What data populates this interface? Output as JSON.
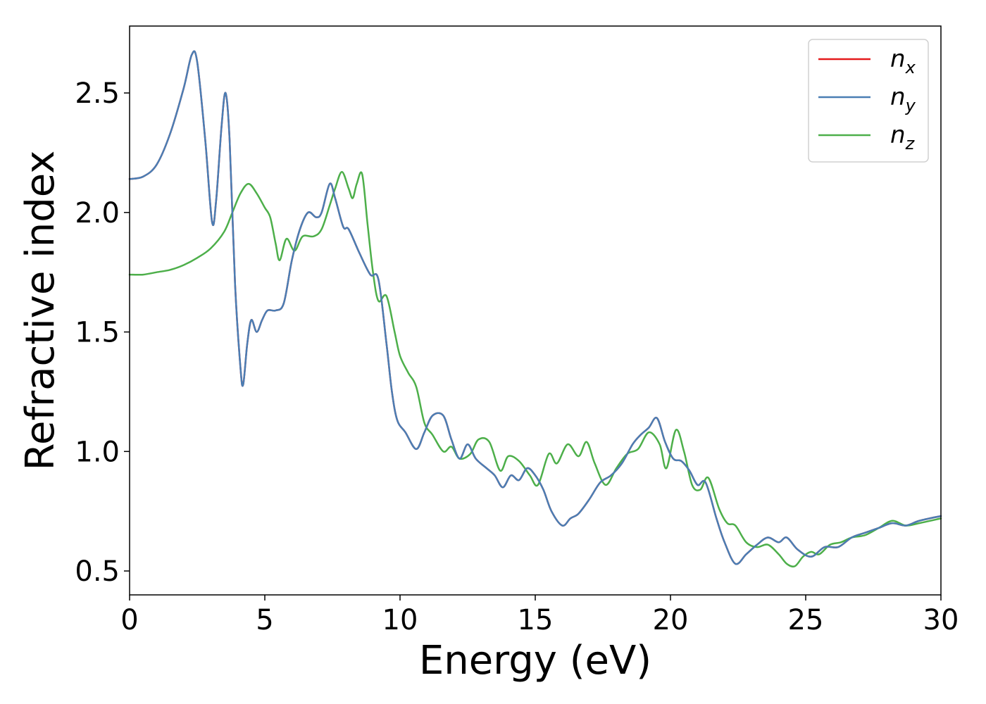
{
  "chart_data": {
    "type": "line",
    "title": "",
    "xlabel": "Energy (eV)",
    "ylabel": "Refractive index",
    "xlim": [
      0,
      30
    ],
    "ylim": [
      0.4,
      2.78
    ],
    "xticks": [
      0,
      5,
      10,
      15,
      20,
      25,
      30
    ],
    "yticks": [
      0.5,
      1.0,
      1.5,
      2.0,
      2.5
    ],
    "xtick_labels": [
      "0",
      "5",
      "10",
      "15",
      "20",
      "25",
      "30"
    ],
    "ytick_labels": [
      "0.5",
      "1.0",
      "1.5",
      "2.0",
      "2.5"
    ],
    "grid": false,
    "legend_position": "top-right",
    "series": [
      {
        "name": "n",
        "subscript": "x",
        "color": "#e41a1c",
        "points": [
          [
            0,
            2.14
          ],
          [
            0.5,
            2.15
          ],
          [
            1,
            2.2
          ],
          [
            1.5,
            2.33
          ],
          [
            2,
            2.52
          ],
          [
            2.3,
            2.66
          ],
          [
            2.5,
            2.63
          ],
          [
            2.8,
            2.3
          ],
          [
            3.05,
            1.96
          ],
          [
            3.2,
            2.05
          ],
          [
            3.4,
            2.36
          ],
          [
            3.55,
            2.5
          ],
          [
            3.7,
            2.3
          ],
          [
            3.9,
            1.7
          ],
          [
            4.1,
            1.35
          ],
          [
            4.2,
            1.28
          ],
          [
            4.35,
            1.45
          ],
          [
            4.5,
            1.55
          ],
          [
            4.7,
            1.5
          ],
          [
            4.9,
            1.55
          ],
          [
            5.1,
            1.59
          ],
          [
            5.4,
            1.59
          ],
          [
            5.7,
            1.62
          ],
          [
            6.0,
            1.8
          ],
          [
            6.3,
            1.93
          ],
          [
            6.6,
            2.0
          ],
          [
            6.9,
            1.98
          ],
          [
            7.1,
            2.0
          ],
          [
            7.4,
            2.12
          ],
          [
            7.6,
            2.06
          ],
          [
            7.9,
            1.94
          ],
          [
            8.1,
            1.93
          ],
          [
            8.5,
            1.83
          ],
          [
            8.9,
            1.74
          ],
          [
            9.2,
            1.72
          ],
          [
            9.5,
            1.45
          ],
          [
            9.7,
            1.25
          ],
          [
            9.9,
            1.13
          ],
          [
            10.2,
            1.08
          ],
          [
            10.6,
            1.01
          ],
          [
            10.9,
            1.08
          ],
          [
            11.2,
            1.15
          ],
          [
            11.6,
            1.15
          ],
          [
            11.9,
            1.05
          ],
          [
            12.2,
            0.97
          ],
          [
            12.5,
            1.03
          ],
          [
            12.8,
            0.97
          ],
          [
            13.2,
            0.93
          ],
          [
            13.5,
            0.9
          ],
          [
            13.8,
            0.85
          ],
          [
            14.1,
            0.9
          ],
          [
            14.4,
            0.88
          ],
          [
            14.7,
            0.93
          ],
          [
            15.0,
            0.9
          ],
          [
            15.3,
            0.84
          ],
          [
            15.6,
            0.75
          ],
          [
            16.0,
            0.69
          ],
          [
            16.3,
            0.72
          ],
          [
            16.6,
            0.74
          ],
          [
            17.0,
            0.8
          ],
          [
            17.4,
            0.87
          ],
          [
            17.8,
            0.9
          ],
          [
            18.2,
            0.95
          ],
          [
            18.6,
            1.03
          ],
          [
            18.9,
            1.07
          ],
          [
            19.2,
            1.1
          ],
          [
            19.5,
            1.14
          ],
          [
            19.8,
            1.04
          ],
          [
            20.1,
            0.97
          ],
          [
            20.4,
            0.96
          ],
          [
            20.7,
            0.92
          ],
          [
            21.0,
            0.86
          ],
          [
            21.3,
            0.87
          ],
          [
            21.7,
            0.72
          ],
          [
            22.0,
            0.62
          ],
          [
            22.4,
            0.53
          ],
          [
            22.8,
            0.57
          ],
          [
            23.2,
            0.61
          ],
          [
            23.6,
            0.64
          ],
          [
            24.0,
            0.62
          ],
          [
            24.3,
            0.64
          ],
          [
            24.7,
            0.59
          ],
          [
            25.2,
            0.56
          ],
          [
            25.7,
            0.6
          ],
          [
            26.2,
            0.6
          ],
          [
            26.7,
            0.64
          ],
          [
            27.2,
            0.66
          ],
          [
            27.7,
            0.68
          ],
          [
            28.2,
            0.7
          ],
          [
            28.7,
            0.69
          ],
          [
            29.2,
            0.71
          ],
          [
            30,
            0.73
          ]
        ]
      },
      {
        "name": "n",
        "subscript": "y",
        "color": "#4a7eb4",
        "points": [
          [
            0,
            2.14
          ],
          [
            0.5,
            2.15
          ],
          [
            1,
            2.2
          ],
          [
            1.5,
            2.33
          ],
          [
            2,
            2.52
          ],
          [
            2.3,
            2.66
          ],
          [
            2.5,
            2.63
          ],
          [
            2.8,
            2.3
          ],
          [
            3.05,
            1.96
          ],
          [
            3.2,
            2.05
          ],
          [
            3.4,
            2.36
          ],
          [
            3.55,
            2.5
          ],
          [
            3.7,
            2.3
          ],
          [
            3.9,
            1.7
          ],
          [
            4.1,
            1.35
          ],
          [
            4.2,
            1.28
          ],
          [
            4.35,
            1.45
          ],
          [
            4.5,
            1.55
          ],
          [
            4.7,
            1.5
          ],
          [
            4.9,
            1.55
          ],
          [
            5.1,
            1.59
          ],
          [
            5.4,
            1.59
          ],
          [
            5.7,
            1.62
          ],
          [
            6.0,
            1.8
          ],
          [
            6.3,
            1.93
          ],
          [
            6.6,
            2.0
          ],
          [
            6.9,
            1.98
          ],
          [
            7.1,
            2.0
          ],
          [
            7.4,
            2.12
          ],
          [
            7.6,
            2.06
          ],
          [
            7.9,
            1.94
          ],
          [
            8.1,
            1.93
          ],
          [
            8.5,
            1.83
          ],
          [
            8.9,
            1.74
          ],
          [
            9.2,
            1.72
          ],
          [
            9.5,
            1.45
          ],
          [
            9.7,
            1.25
          ],
          [
            9.9,
            1.13
          ],
          [
            10.2,
            1.08
          ],
          [
            10.6,
            1.01
          ],
          [
            10.9,
            1.08
          ],
          [
            11.2,
            1.15
          ],
          [
            11.6,
            1.15
          ],
          [
            11.9,
            1.05
          ],
          [
            12.2,
            0.97
          ],
          [
            12.5,
            1.03
          ],
          [
            12.8,
            0.97
          ],
          [
            13.2,
            0.93
          ],
          [
            13.5,
            0.9
          ],
          [
            13.8,
            0.85
          ],
          [
            14.1,
            0.9
          ],
          [
            14.4,
            0.88
          ],
          [
            14.7,
            0.93
          ],
          [
            15.0,
            0.9
          ],
          [
            15.3,
            0.84
          ],
          [
            15.6,
            0.75
          ],
          [
            16.0,
            0.69
          ],
          [
            16.3,
            0.72
          ],
          [
            16.6,
            0.74
          ],
          [
            17.0,
            0.8
          ],
          [
            17.4,
            0.87
          ],
          [
            17.8,
            0.9
          ],
          [
            18.2,
            0.95
          ],
          [
            18.6,
            1.03
          ],
          [
            18.9,
            1.07
          ],
          [
            19.2,
            1.1
          ],
          [
            19.5,
            1.14
          ],
          [
            19.8,
            1.04
          ],
          [
            20.1,
            0.97
          ],
          [
            20.4,
            0.96
          ],
          [
            20.7,
            0.92
          ],
          [
            21.0,
            0.86
          ],
          [
            21.3,
            0.87
          ],
          [
            21.7,
            0.72
          ],
          [
            22.0,
            0.62
          ],
          [
            22.4,
            0.53
          ],
          [
            22.8,
            0.57
          ],
          [
            23.2,
            0.61
          ],
          [
            23.6,
            0.64
          ],
          [
            24.0,
            0.62
          ],
          [
            24.3,
            0.64
          ],
          [
            24.7,
            0.59
          ],
          [
            25.2,
            0.56
          ],
          [
            25.7,
            0.6
          ],
          [
            26.2,
            0.6
          ],
          [
            26.7,
            0.64
          ],
          [
            27.2,
            0.66
          ],
          [
            27.7,
            0.68
          ],
          [
            28.2,
            0.7
          ],
          [
            28.7,
            0.69
          ],
          [
            29.2,
            0.71
          ],
          [
            30,
            0.73
          ]
        ]
      },
      {
        "name": "n",
        "subscript": "z",
        "color": "#4daf4a",
        "points": [
          [
            0,
            1.74
          ],
          [
            0.5,
            1.74
          ],
          [
            1,
            1.75
          ],
          [
            1.5,
            1.76
          ],
          [
            2,
            1.78
          ],
          [
            2.5,
            1.81
          ],
          [
            3,
            1.85
          ],
          [
            3.5,
            1.92
          ],
          [
            3.8,
            2.0
          ],
          [
            4.1,
            2.08
          ],
          [
            4.4,
            2.12
          ],
          [
            4.7,
            2.08
          ],
          [
            5.0,
            2.02
          ],
          [
            5.2,
            1.98
          ],
          [
            5.4,
            1.87
          ],
          [
            5.55,
            1.8
          ],
          [
            5.8,
            1.89
          ],
          [
            6.1,
            1.84
          ],
          [
            6.4,
            1.9
          ],
          [
            6.8,
            1.9
          ],
          [
            7.1,
            1.93
          ],
          [
            7.4,
            2.03
          ],
          [
            7.6,
            2.1
          ],
          [
            7.85,
            2.17
          ],
          [
            8.1,
            2.1
          ],
          [
            8.25,
            2.06
          ],
          [
            8.4,
            2.12
          ],
          [
            8.6,
            2.16
          ],
          [
            8.8,
            1.95
          ],
          [
            9.0,
            1.75
          ],
          [
            9.2,
            1.63
          ],
          [
            9.5,
            1.65
          ],
          [
            9.8,
            1.5
          ],
          [
            10.0,
            1.4
          ],
          [
            10.3,
            1.33
          ],
          [
            10.6,
            1.27
          ],
          [
            10.9,
            1.12
          ],
          [
            11.2,
            1.07
          ],
          [
            11.6,
            1.0
          ],
          [
            11.9,
            1.02
          ],
          [
            12.2,
            0.97
          ],
          [
            12.6,
            0.99
          ],
          [
            12.9,
            1.05
          ],
          [
            13.3,
            1.04
          ],
          [
            13.7,
            0.92
          ],
          [
            14.0,
            0.98
          ],
          [
            14.4,
            0.96
          ],
          [
            14.8,
            0.9
          ],
          [
            15.1,
            0.86
          ],
          [
            15.5,
            0.99
          ],
          [
            15.8,
            0.95
          ],
          [
            16.2,
            1.03
          ],
          [
            16.6,
            0.98
          ],
          [
            16.9,
            1.04
          ],
          [
            17.2,
            0.95
          ],
          [
            17.6,
            0.86
          ],
          [
            18.0,
            0.93
          ],
          [
            18.4,
            0.99
          ],
          [
            18.8,
            1.01
          ],
          [
            19.2,
            1.08
          ],
          [
            19.6,
            1.03
          ],
          [
            19.85,
            0.93
          ],
          [
            20.2,
            1.09
          ],
          [
            20.5,
            1.0
          ],
          [
            20.8,
            0.86
          ],
          [
            21.1,
            0.84
          ],
          [
            21.4,
            0.89
          ],
          [
            21.8,
            0.76
          ],
          [
            22.1,
            0.7
          ],
          [
            22.4,
            0.69
          ],
          [
            22.8,
            0.62
          ],
          [
            23.2,
            0.6
          ],
          [
            23.6,
            0.61
          ],
          [
            24.0,
            0.57
          ],
          [
            24.3,
            0.53
          ],
          [
            24.6,
            0.52
          ],
          [
            24.9,
            0.56
          ],
          [
            25.2,
            0.58
          ],
          [
            25.5,
            0.57
          ],
          [
            25.9,
            0.61
          ],
          [
            26.3,
            0.62
          ],
          [
            26.7,
            0.64
          ],
          [
            27.2,
            0.65
          ],
          [
            27.7,
            0.68
          ],
          [
            28.2,
            0.71
          ],
          [
            28.7,
            0.69
          ],
          [
            29.2,
            0.7
          ],
          [
            30,
            0.72
          ]
        ]
      }
    ]
  }
}
